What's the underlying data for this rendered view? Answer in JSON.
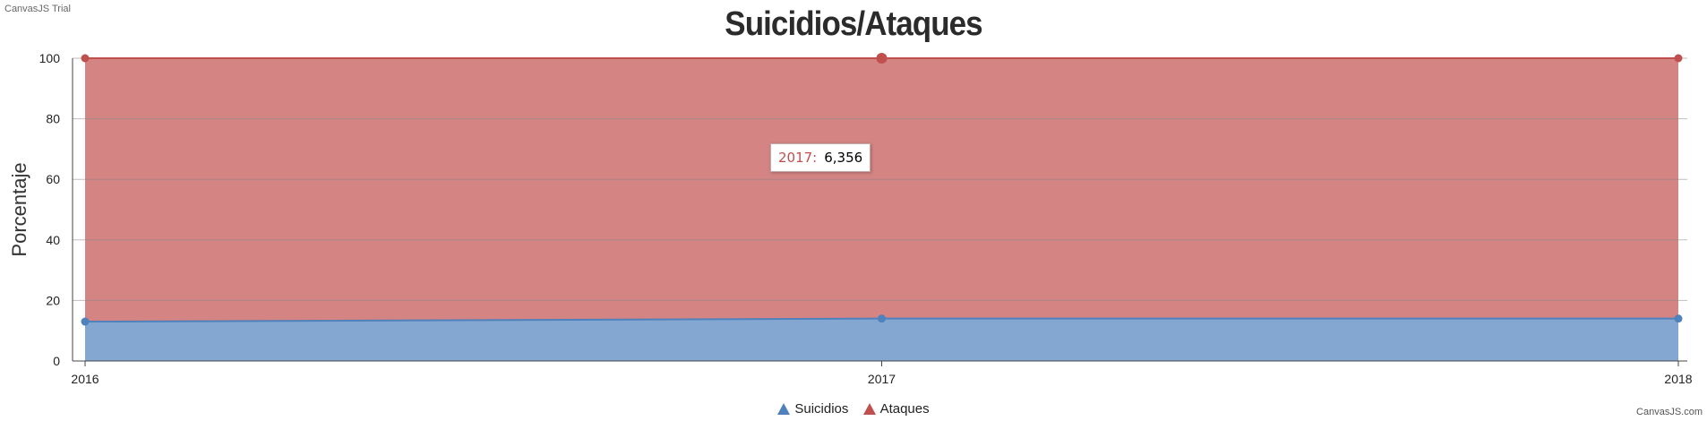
{
  "watermark": "CanvasJS Trial",
  "credit": "CanvasJS.com",
  "chart_data": {
    "type": "area",
    "title": "Suicidios/Ataques",
    "ylabel": "Porcentaje",
    "xlabel": "",
    "categories": [
      "2016",
      "2017",
      "2018"
    ],
    "ylim": [
      0,
      100
    ],
    "yticks": [
      0,
      20,
      40,
      60,
      80,
      100
    ],
    "grid": true,
    "legend_position": "bottom-center",
    "stacking": "100%",
    "series": [
      {
        "name": "Suicidios",
        "color": "#4f81bc",
        "values": [
          13,
          14,
          14
        ]
      },
      {
        "name": "Ataques",
        "color": "#c0504e",
        "values": [
          87,
          86,
          86
        ]
      }
    ],
    "tooltip": {
      "label": "2017:",
      "value": "6,356"
    }
  }
}
